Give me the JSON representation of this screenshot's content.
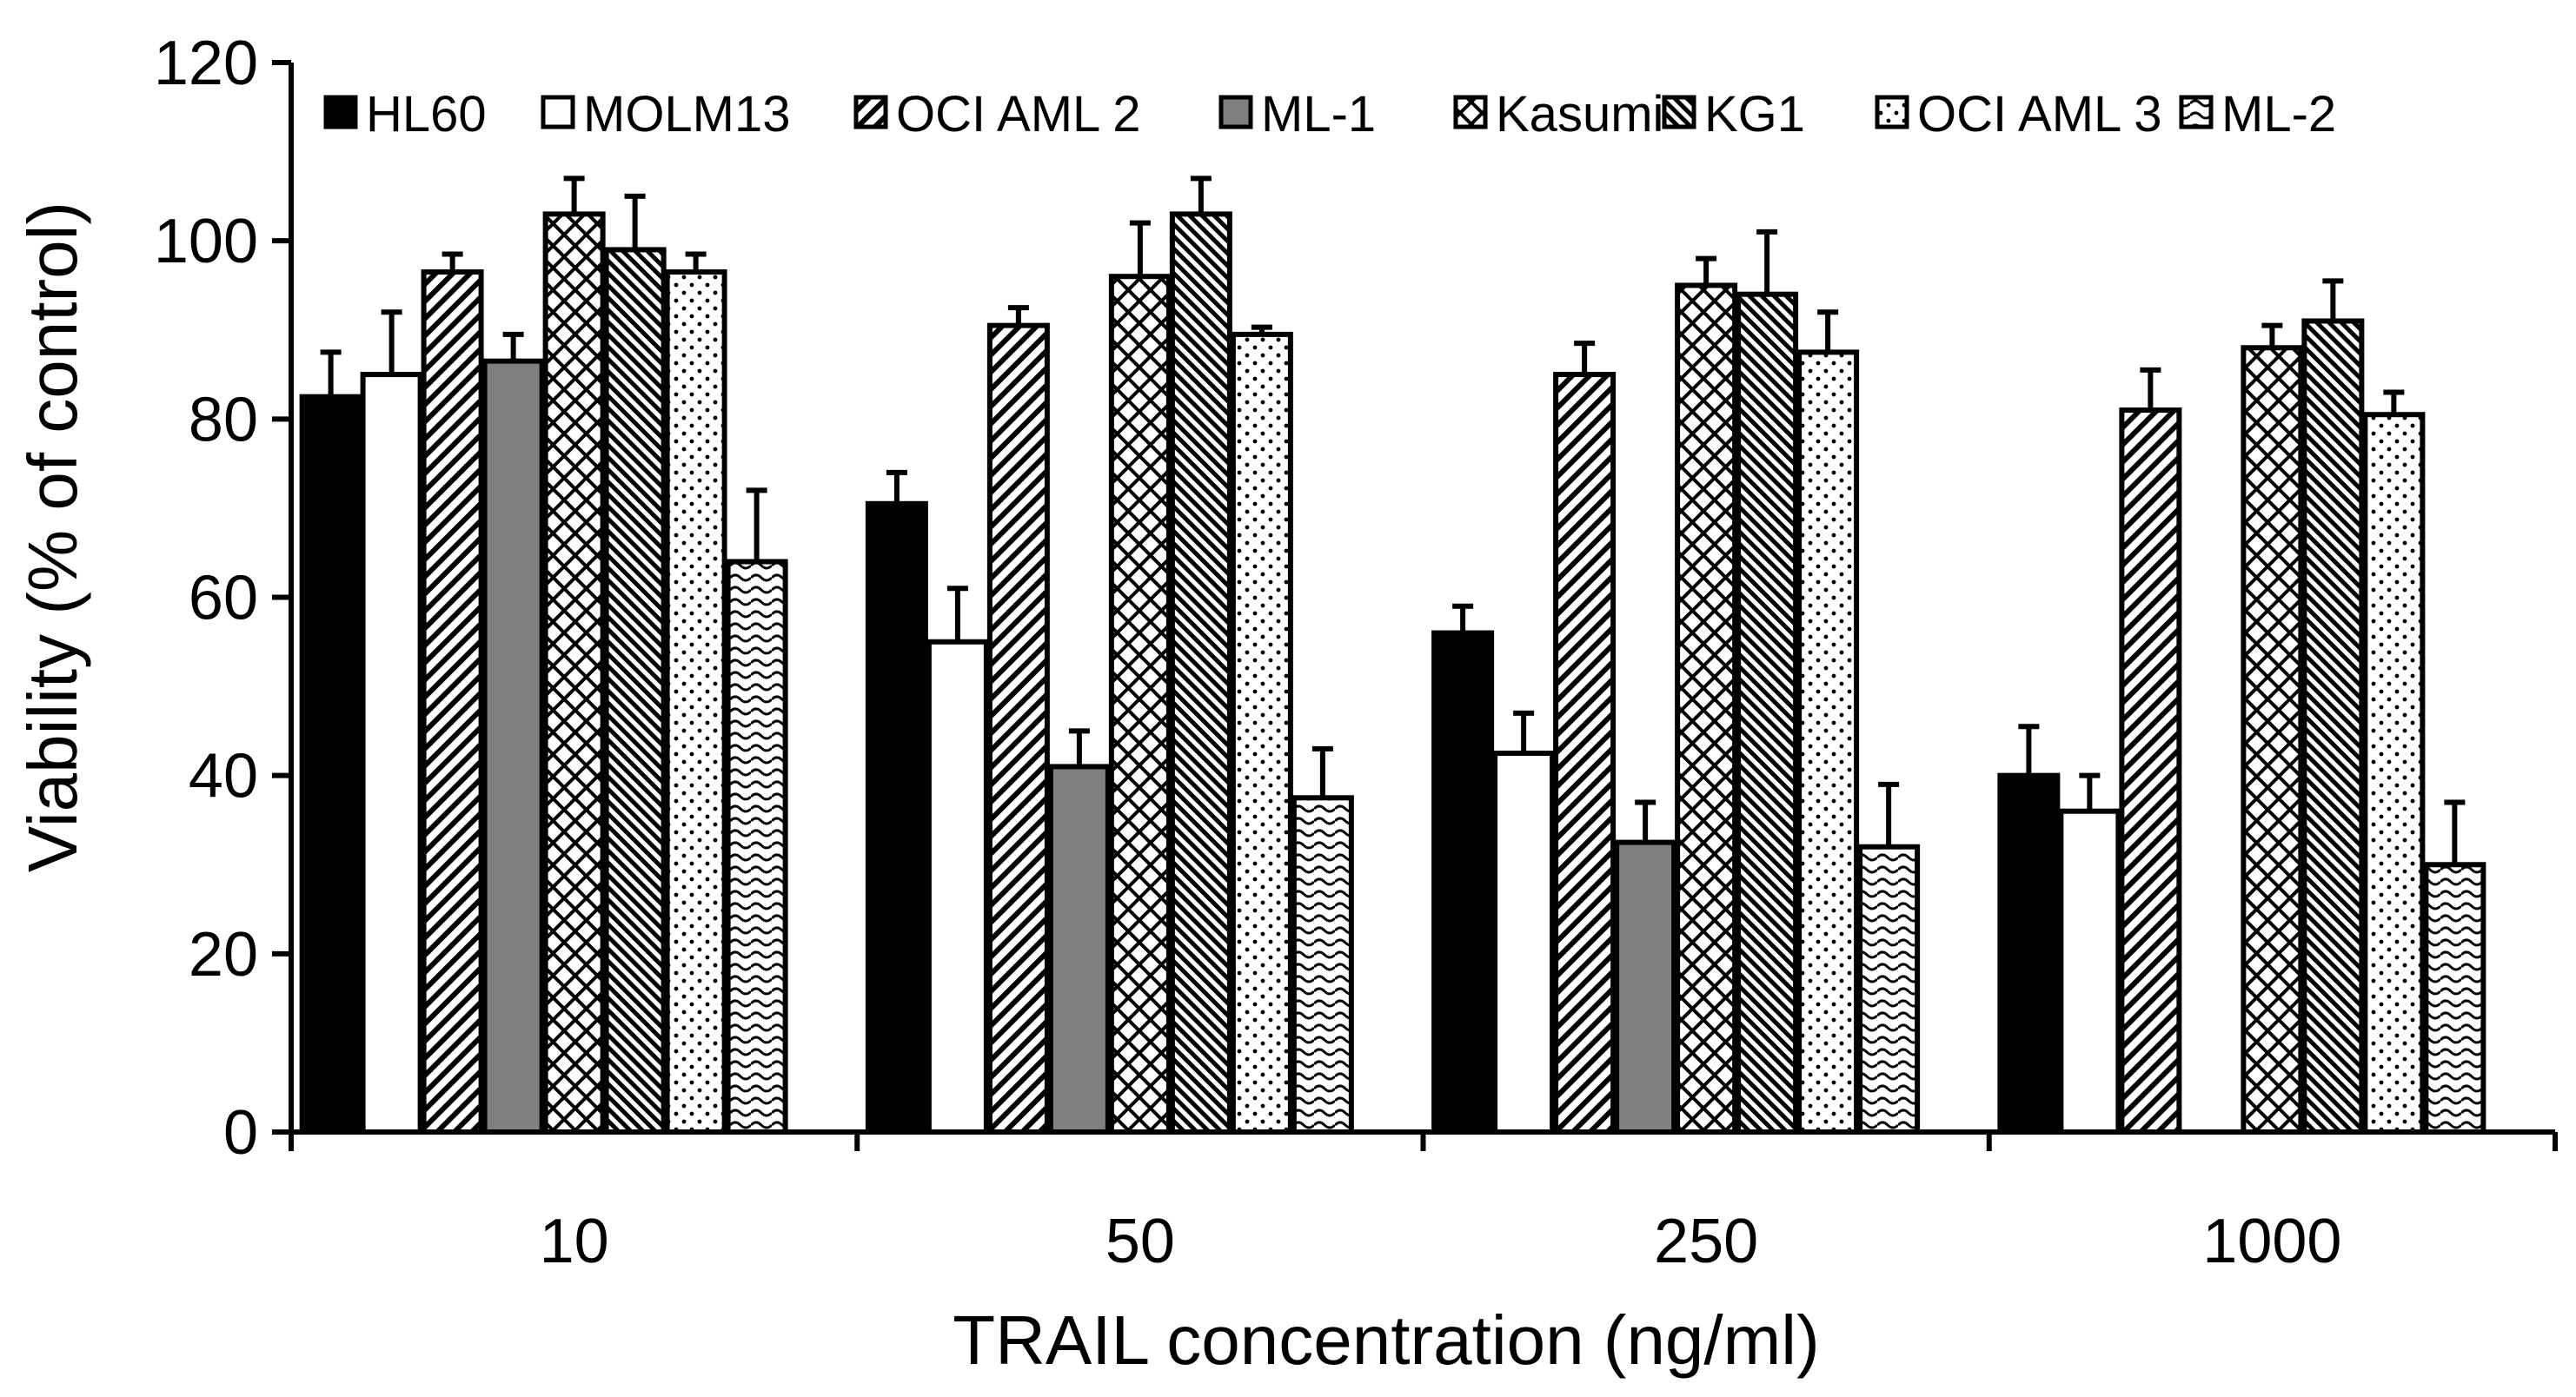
{
  "chart_data": {
    "type": "bar",
    "title": "",
    "xlabel": "TRAIL concentration (ng/ml)",
    "ylabel": "Viability (% of control)",
    "ylim": [
      0,
      120
    ],
    "yticks": [
      0,
      20,
      40,
      60,
      80,
      100,
      120
    ],
    "ytick_labels": [
      "0",
      "20",
      "40",
      "60",
      "80",
      "100",
      "120"
    ],
    "categories": [
      "10",
      "50",
      "250",
      "1000"
    ],
    "legend_position": "top",
    "grid": false,
    "series": [
      {
        "name": "HL60",
        "pattern": "solid-black",
        "values": [
          82.5,
          70.5,
          56,
          40
        ],
        "errors": [
          5,
          3.5,
          3,
          5.5
        ]
      },
      {
        "name": "MOLM13",
        "pattern": "white",
        "values": [
          85,
          55,
          42.5,
          36
        ],
        "errors": [
          7,
          6,
          4.5,
          4
        ]
      },
      {
        "name": "OCI AML 2",
        "pattern": "diagonal-lines",
        "values": [
          96.5,
          90.5,
          85,
          81
        ],
        "errors": [
          2,
          2,
          3.5,
          4.5
        ]
      },
      {
        "name": "ML-1",
        "pattern": "solid-gray",
        "values": [
          86.5,
          41,
          32.5,
          null
        ],
        "errors": [
          3,
          4,
          4.5,
          null
        ]
      },
      {
        "name": "Kasumi",
        "pattern": "crosshatch",
        "values": [
          103,
          96,
          95,
          88
        ],
        "errors": [
          4,
          6,
          3,
          2.5
        ]
      },
      {
        "name": "KG1",
        "pattern": "dense-diagonal",
        "values": [
          99,
          103,
          94,
          91
        ],
        "errors": [
          6,
          4,
          7,
          4.5
        ]
      },
      {
        "name": "OCI AML 3",
        "pattern": "dots",
        "values": [
          96.5,
          89.5,
          87.5,
          80.5
        ],
        "errors": [
          2,
          0.8,
          4.5,
          2.5
        ]
      },
      {
        "name": "ML-2",
        "pattern": "waves",
        "values": [
          64,
          37.5,
          32,
          30
        ],
        "errors": [
          8,
          5.5,
          7,
          7
        ]
      }
    ]
  }
}
